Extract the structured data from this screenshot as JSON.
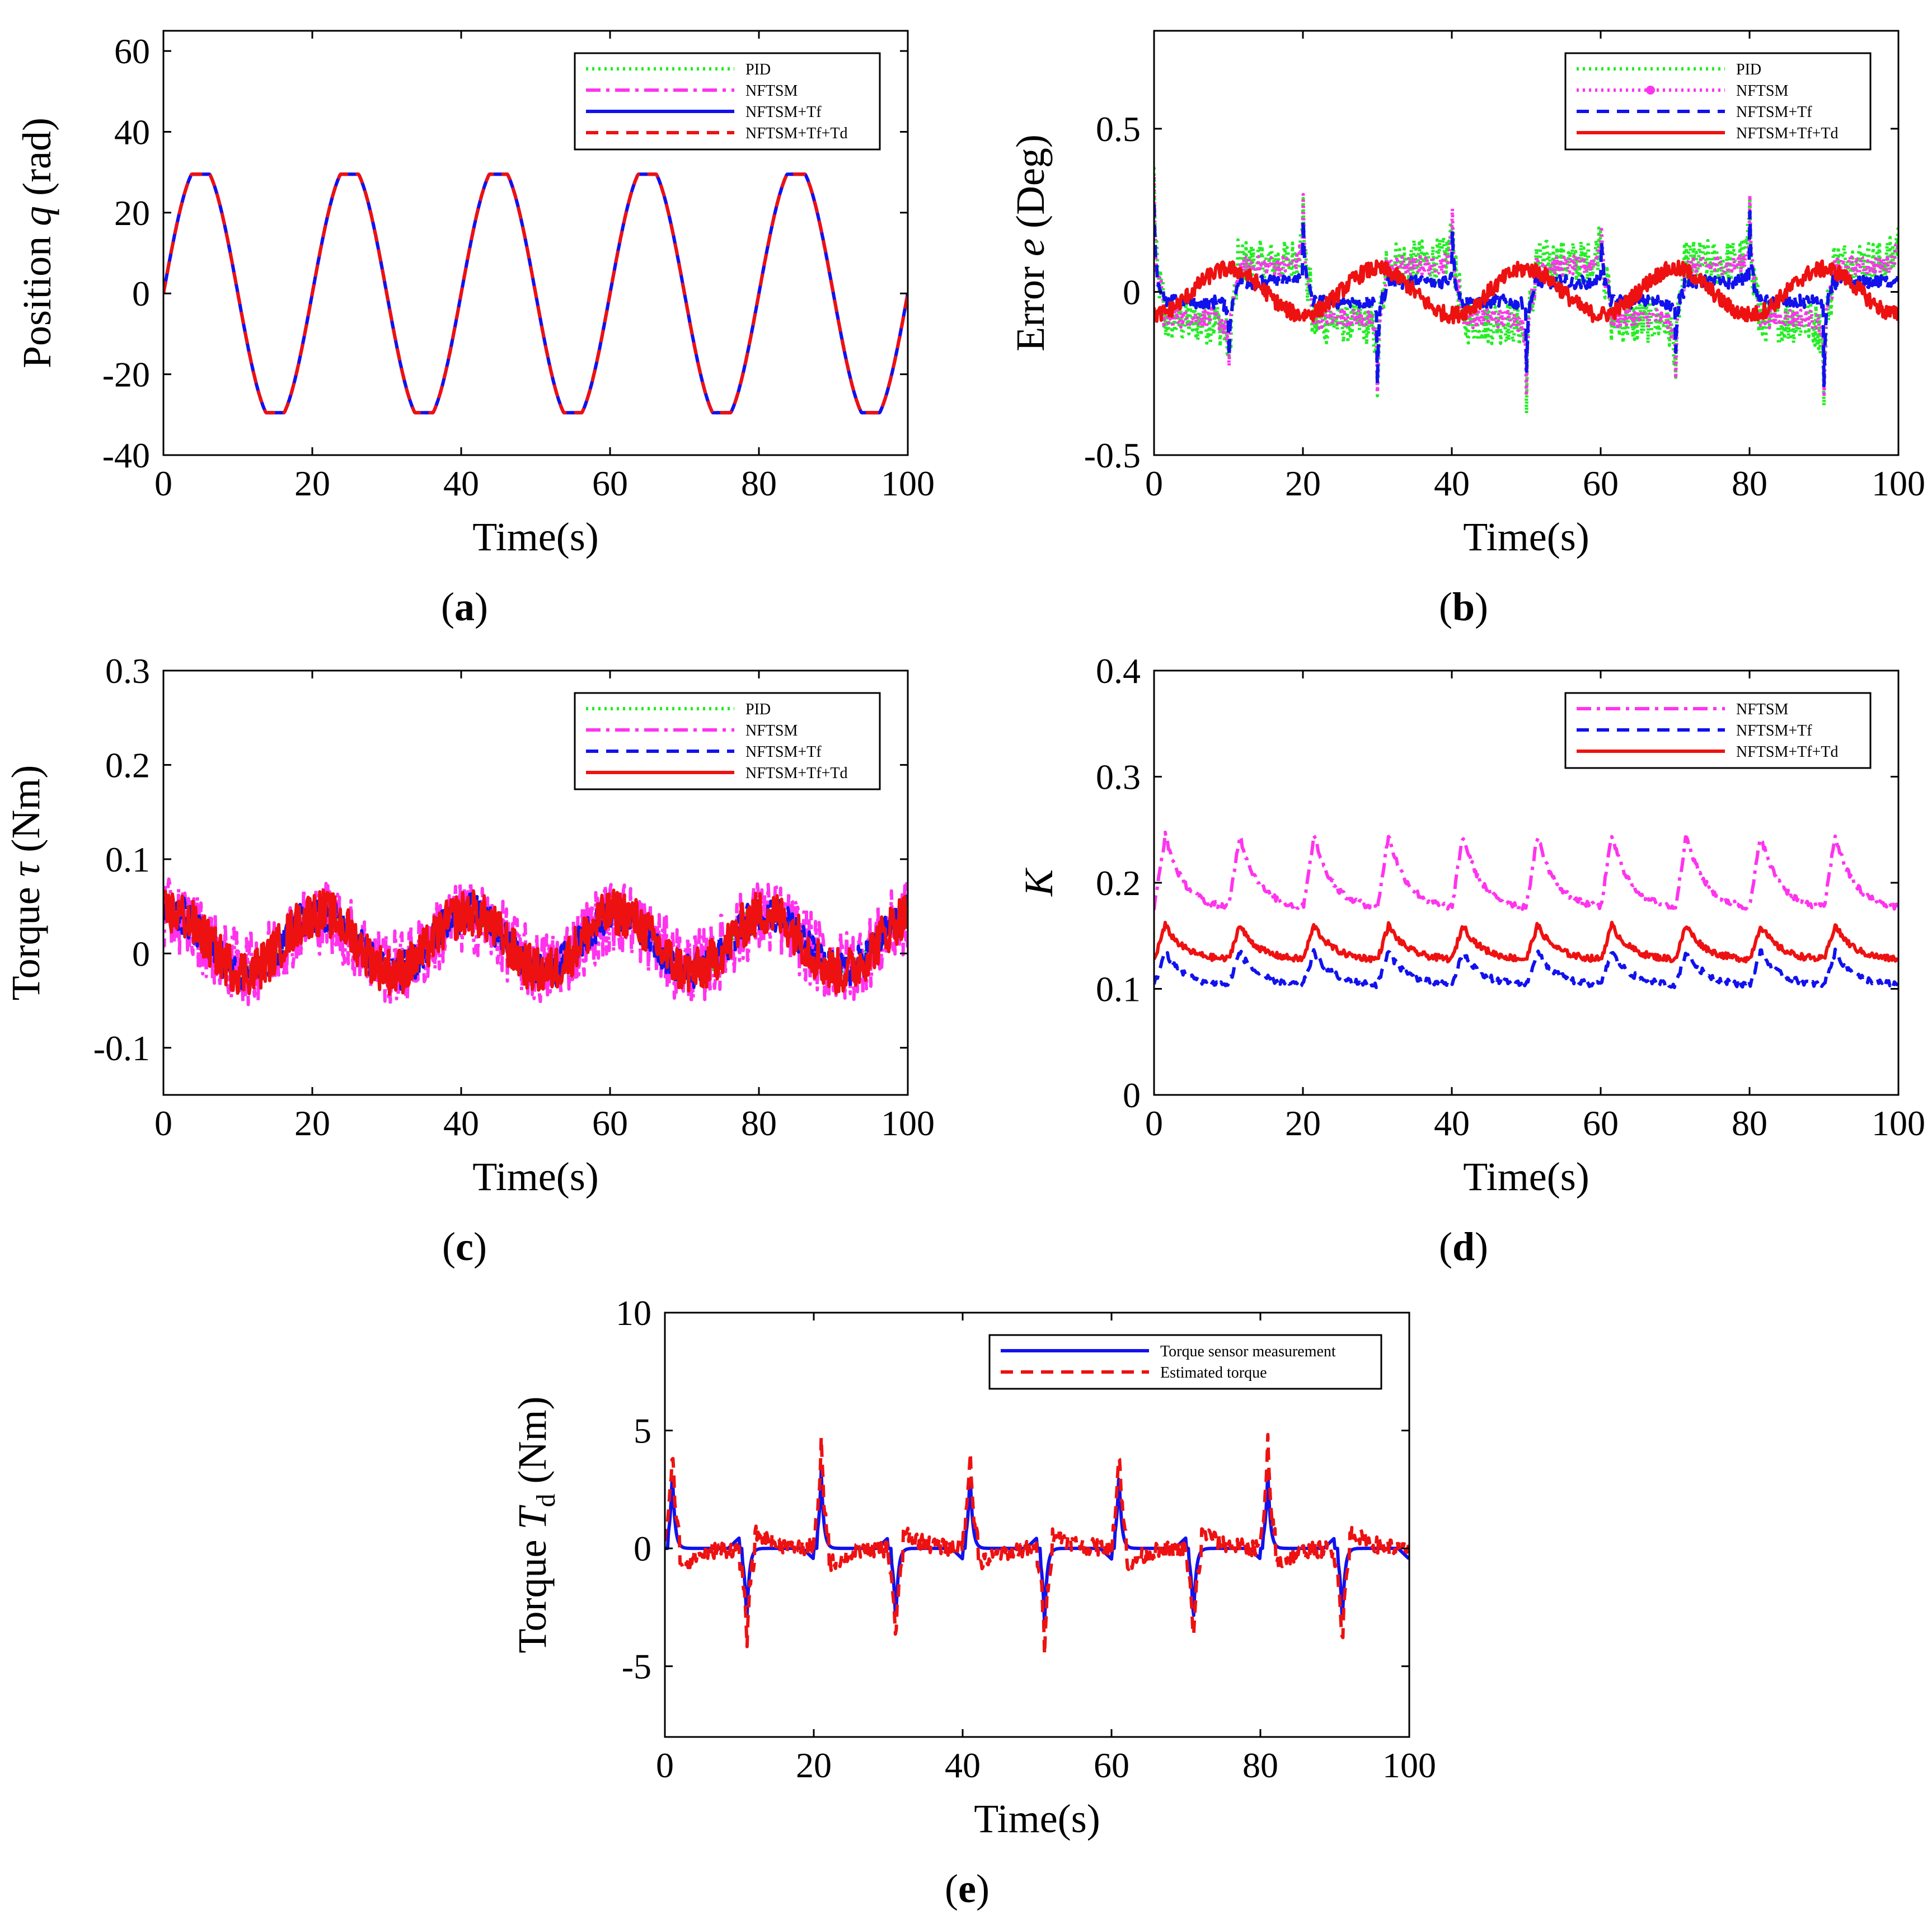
{
  "colors": {
    "green": "#22ee22",
    "magenta": "#ff33ee",
    "blue": "#1111ee",
    "red": "#ee1111"
  },
  "chart_data": [
    {
      "id": "a",
      "type": "line",
      "caption": "a",
      "xlabel": "Time(s)",
      "ylabel": "Position q (rad)",
      "ylabel_parts": [
        "Position ",
        "q",
        " (rad)"
      ],
      "xlim": [
        0,
        100
      ],
      "ylim": [
        -40,
        65
      ],
      "xticks": [
        0,
        20,
        40,
        60,
        80,
        100
      ],
      "yticks": [
        -40,
        -20,
        0,
        20,
        40,
        60
      ],
      "legend_position": "top-right",
      "signal": {
        "kind": "sine",
        "amplitude": 29.5,
        "period": 20,
        "phase_deg": 0,
        "saturation": 29.5
      },
      "series": [
        {
          "name": "PID",
          "style": "dotted",
          "color": "#22ee22"
        },
        {
          "name": "NFTSM",
          "style": "dashdot",
          "color": "#ff33ee"
        },
        {
          "name": "NFTSM+Tf",
          "style": "solid",
          "color": "#1111ee"
        },
        {
          "name": "NFTSM+Tf+Td",
          "style": "dashed",
          "color": "#ee1111"
        }
      ]
    },
    {
      "id": "b",
      "type": "line",
      "caption": "b",
      "xlabel": "Time(s)",
      "ylabel": "Error e (Deg)",
      "ylabel_parts": [
        "Error ",
        "e",
        " (Deg)"
      ],
      "xlim": [
        0,
        100
      ],
      "ylim": [
        -0.5,
        0.8
      ],
      "xticks": [
        0,
        20,
        40,
        60,
        80,
        100
      ],
      "yticks": [
        -0.5,
        0,
        0.5
      ],
      "yticklabels": [
        "-0.5",
        "0",
        "0.5"
      ],
      "legend_position": "top-right",
      "series": [
        {
          "name": "PID",
          "style": "dotted",
          "color": "#22ee22",
          "period": 20,
          "base": 0.09,
          "spike": 0.36,
          "noise": 0.07
        },
        {
          "name": "NFTSM",
          "style": "dotted-marker",
          "color": "#ff33ee",
          "period": 20,
          "base": 0.08,
          "spike": 0.33,
          "noise": 0.03
        },
        {
          "name": "NFTSM+Tf",
          "style": "dashed",
          "color": "#1111ee",
          "period": 20,
          "base": 0.03,
          "spike": 0.27,
          "noise": 0.02
        },
        {
          "name": "NFTSM+Tf+Td",
          "style": "solid",
          "color": "#ee1111",
          "period": 20,
          "base": -0.07,
          "spike": 0.0,
          "noise": 0.025
        }
      ]
    },
    {
      "id": "c",
      "type": "line",
      "caption": "c",
      "xlabel": "Time(s)",
      "ylabel": "Torque τ (Nm)",
      "ylabel_parts": [
        "Torque ",
        "τ",
        " (Nm)"
      ],
      "xlim": [
        0,
        100
      ],
      "ylim": [
        -0.15,
        0.3
      ],
      "xticks": [
        0,
        20,
        40,
        60,
        80,
        100
      ],
      "yticks": [
        -0.1,
        0,
        0.1,
        0.2,
        0.3
      ],
      "yticklabels": [
        "-0.1",
        "0",
        "0.1",
        "0.2",
        "0.3"
      ],
      "legend_position": "top-right",
      "series": [
        {
          "name": "PID",
          "style": "dotted",
          "color": "#22ee22",
          "amp": 0.035,
          "noise": 0.012
        },
        {
          "name": "NFTSM",
          "style": "dashdot",
          "color": "#ff33ee",
          "amp": 0.03,
          "noise": 0.04
        },
        {
          "name": "NFTSM+Tf",
          "style": "dashed",
          "color": "#1111ee",
          "amp": 0.035,
          "noise": 0.02
        },
        {
          "name": "NFTSM+Tf+Td",
          "style": "solid",
          "color": "#ee1111",
          "amp": 0.035,
          "noise": 0.025
        }
      ]
    },
    {
      "id": "d",
      "type": "line",
      "caption": "d",
      "xlabel": "Time(s)",
      "ylabel": "K",
      "ylabel_parts": [
        "",
        "K",
        ""
      ],
      "xlim": [
        0,
        100
      ],
      "ylim": [
        0,
        0.4
      ],
      "xticks": [
        0,
        20,
        40,
        60,
        80,
        100
      ],
      "yticks": [
        0,
        0.1,
        0.2,
        0.3,
        0.4
      ],
      "yticklabels": [
        "0",
        "0.1",
        "0.2",
        "0.3",
        "0.4"
      ],
      "legend_position": "top-right",
      "series": [
        {
          "name": "NFTSM",
          "style": "dashdot",
          "color": "#ff33ee",
          "base": 0.175,
          "peak": 0.245,
          "period": 10
        },
        {
          "name": "NFTSM+Tf",
          "style": "dashed",
          "color": "#1111ee",
          "base": 0.103,
          "peak": 0.135,
          "period": 10
        },
        {
          "name": "NFTSM+Tf+Td",
          "style": "solid",
          "color": "#ee1111",
          "base": 0.127,
          "peak": 0.16,
          "period": 10
        }
      ]
    },
    {
      "id": "e",
      "type": "line",
      "caption": "e",
      "xlabel": "Time(s)",
      "ylabel": "Torque Td (Nm)",
      "ylabel_parts": [
        "Torque ",
        "T",
        "d",
        " (Nm)"
      ],
      "xlim": [
        0,
        100
      ],
      "ylim": [
        -8,
        10
      ],
      "xticks": [
        0,
        20,
        40,
        60,
        80,
        100
      ],
      "yticks": [
        -5,
        0,
        5,
        10
      ],
      "legend_position": "top-right",
      "series": [
        {
          "name": "Torque sensor measurement",
          "style": "solid",
          "color": "#1111ee",
          "peak": 3.3,
          "trough": -3.2
        },
        {
          "name": "Estimated torque",
          "style": "dashed",
          "color": "#ee1111",
          "peak": 4.5,
          "trough": -4.2
        }
      ]
    }
  ]
}
